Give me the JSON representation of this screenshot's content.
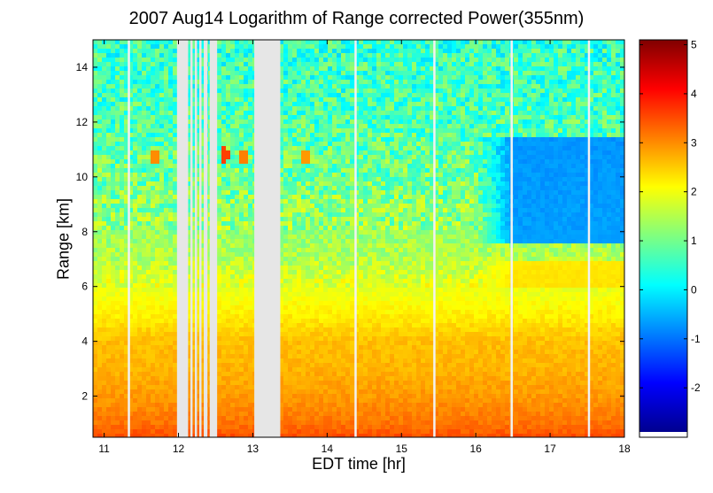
{
  "chart_data": {
    "type": "heatmap",
    "title": "2007 Aug14  Logarithm of Range corrected Power(355nm)",
    "xlabel": "EDT time [hr]",
    "ylabel": "Range [km]",
    "xlim": [
      10.85,
      18.0
    ],
    "ylim": [
      0.5,
      15.0
    ],
    "xticks": [
      11,
      12,
      13,
      14,
      15,
      16,
      17,
      18
    ],
    "yticks": [
      2,
      4,
      6,
      8,
      10,
      12,
      14
    ],
    "colorbar": {
      "range": [
        -2.9,
        5.1
      ],
      "ticks": [
        -2,
        -1,
        0,
        1,
        2,
        3,
        4,
        5
      ],
      "colormap": "jet"
    },
    "missing_data_intervals": [
      [
        11.98,
        12.13
      ],
      [
        12.16,
        12.19
      ],
      [
        12.22,
        12.25
      ],
      [
        12.28,
        12.31
      ],
      [
        12.34,
        12.39
      ],
      [
        12.42,
        12.52
      ],
      [
        13.02,
        13.37
      ]
    ],
    "gap_lines": [
      11.33,
      14.38,
      15.44,
      16.48,
      17.52
    ],
    "profile": [
      {
        "range_km": 0.5,
        "value": 3.5
      },
      {
        "range_km": 1.0,
        "value": 3.2
      },
      {
        "range_km": 2.0,
        "value": 2.9
      },
      {
        "range_km": 3.0,
        "value": 2.7
      },
      {
        "range_km": 4.0,
        "value": 2.6
      },
      {
        "range_km": 5.0,
        "value": 2.2
      },
      {
        "range_km": 6.0,
        "value": 1.9
      },
      {
        "range_km": 7.0,
        "value": 1.5
      },
      {
        "range_km": 8.0,
        "value": 1.3
      },
      {
        "range_km": 10.0,
        "value": 1.0
      },
      {
        "range_km": 12.0,
        "value": 0.7
      },
      {
        "range_km": 15.0,
        "value": 0.5
      }
    ],
    "features": [
      {
        "name": "aerosol layer",
        "time_range": [
          16.0,
          18.0
        ],
        "range_km": [
          5.9,
          6.9
        ],
        "value": 2.4
      },
      {
        "name": "clean upper region",
        "time_range": [
          16.0,
          18.0
        ],
        "range_km": [
          7.5,
          11.5
        ],
        "value": -1.0
      },
      {
        "name": "thin cloud 1",
        "time": 11.68,
        "range_km": 10.7,
        "value": 3.0
      },
      {
        "name": "thin cloud 2",
        "time": 12.62,
        "range_km": 10.8,
        "value": 3.6
      },
      {
        "name": "thin cloud 3",
        "time": 12.88,
        "range_km": 10.7,
        "value": 3.1
      },
      {
        "name": "thin cloud 4",
        "time": 13.7,
        "range_km": 10.7,
        "value": 2.9
      }
    ]
  }
}
